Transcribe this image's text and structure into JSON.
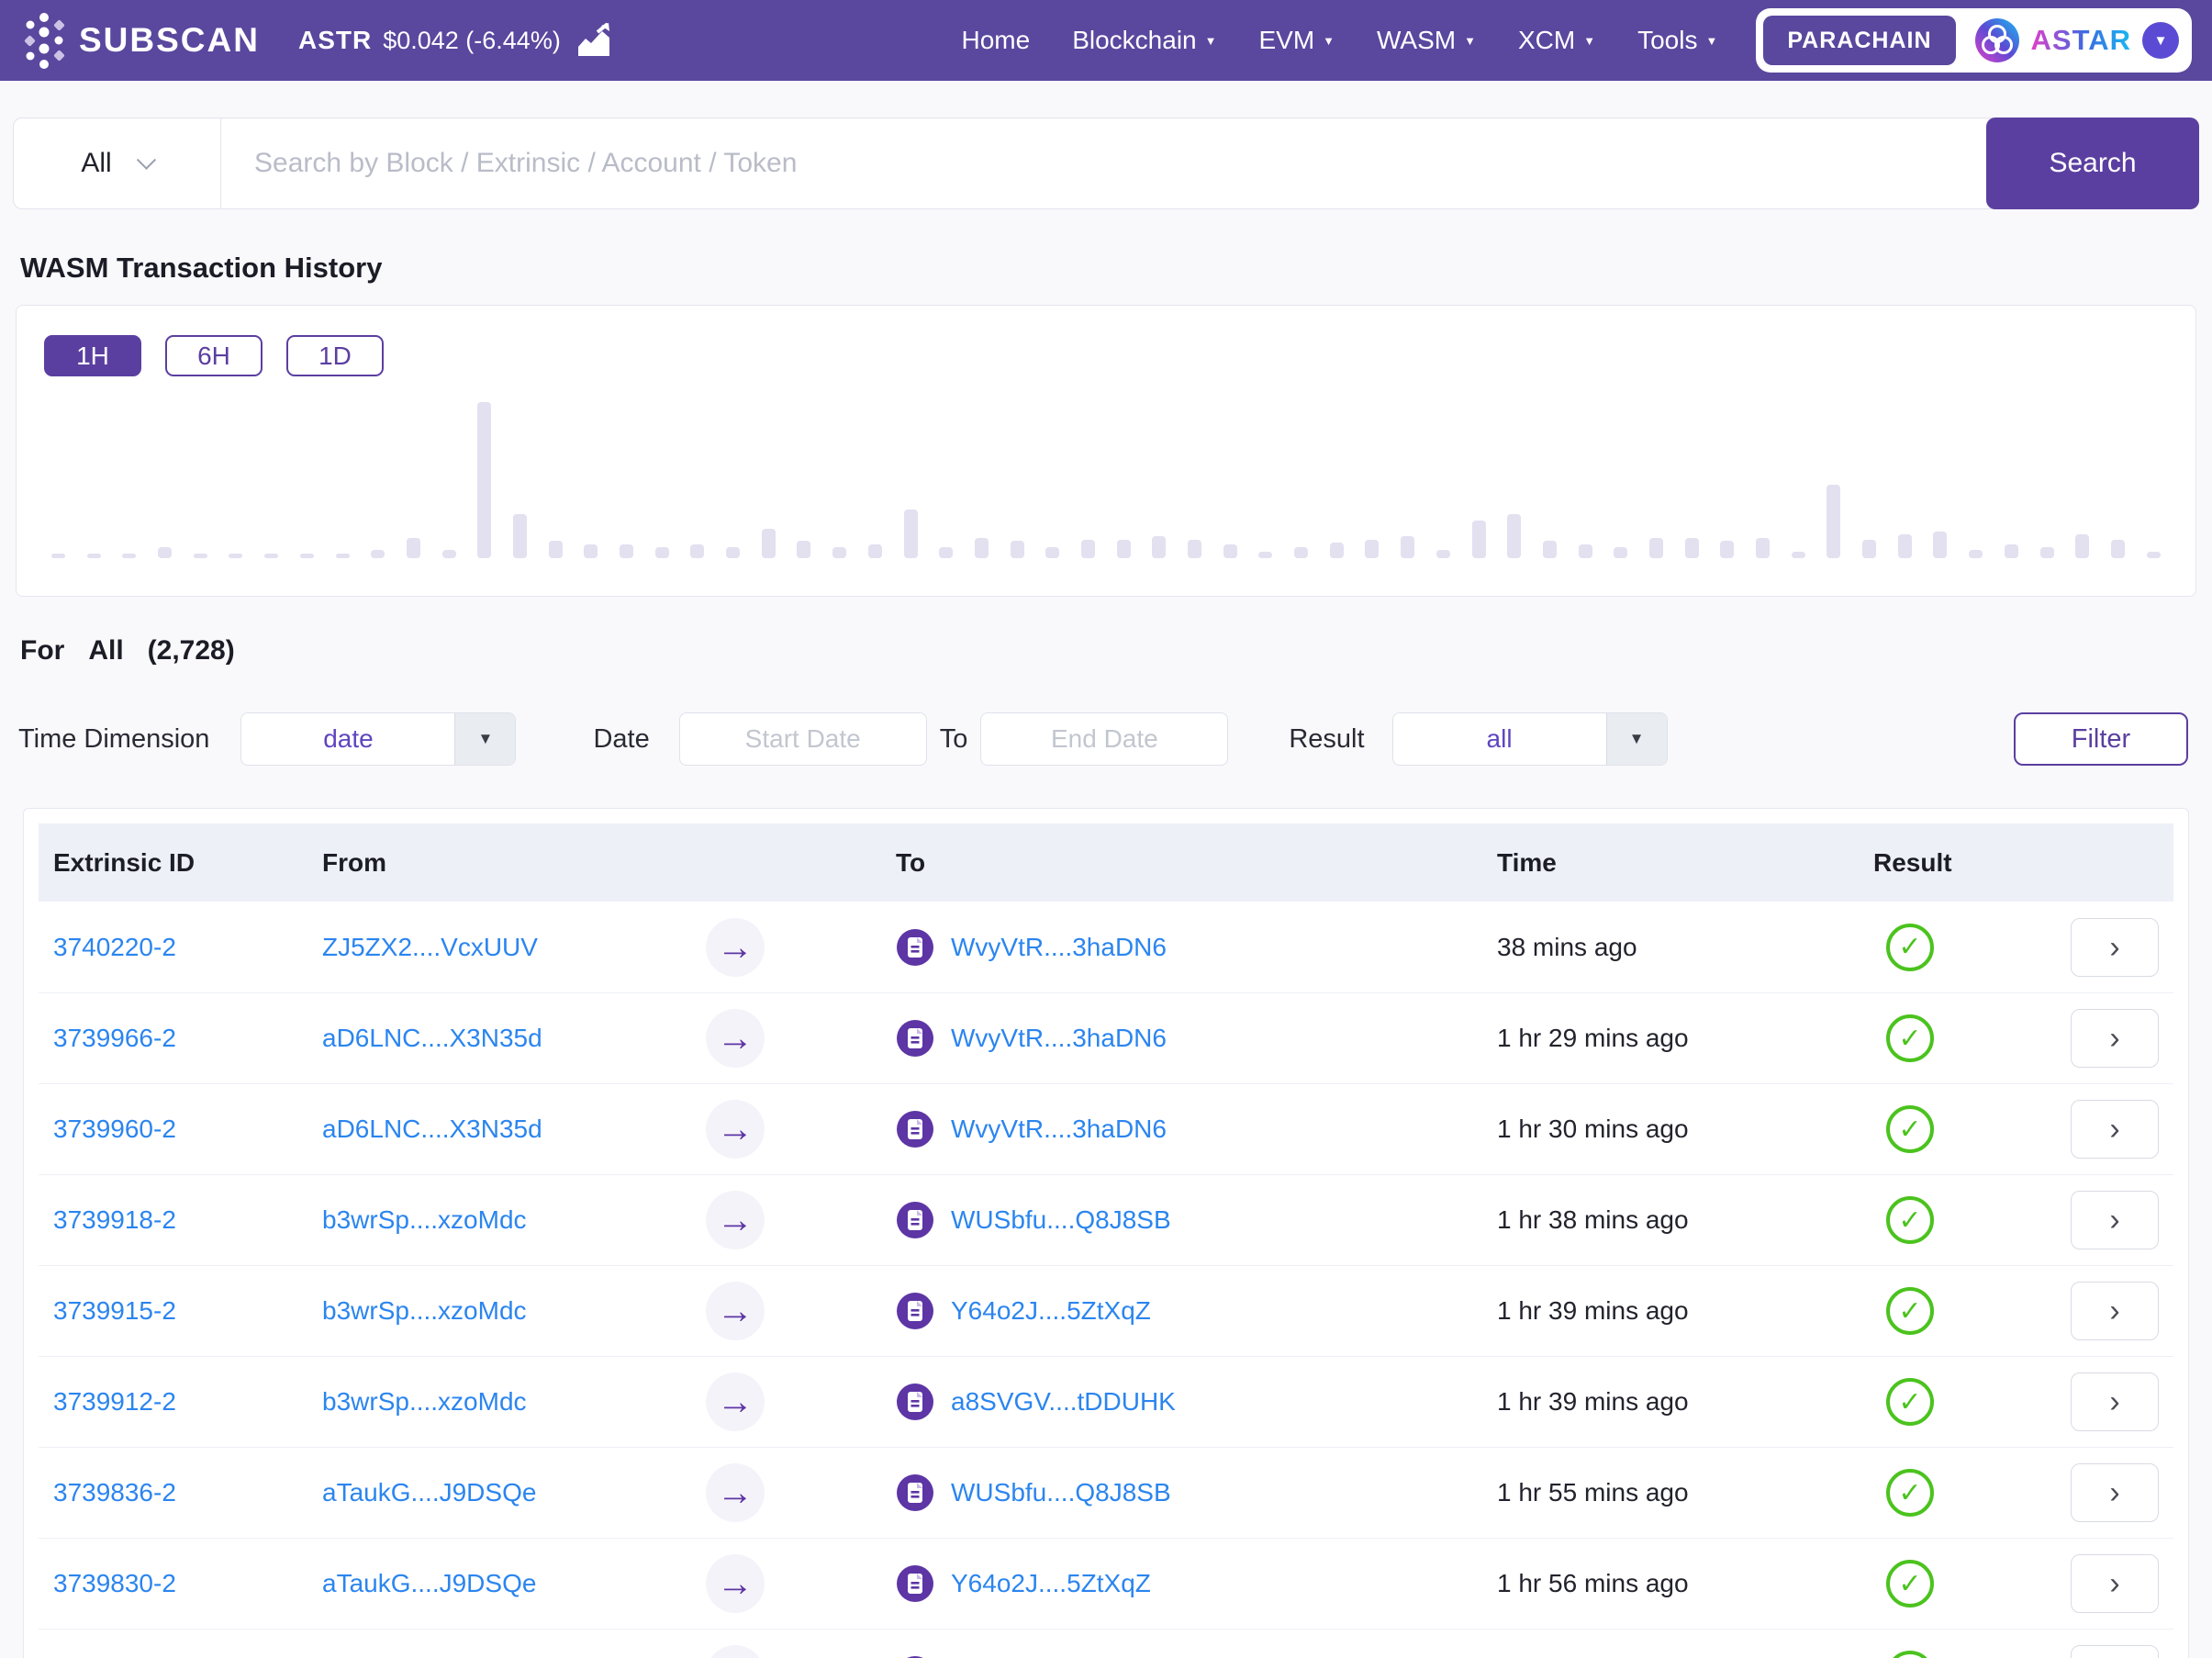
{
  "navbar": {
    "brand": "SUBSCAN",
    "token_symbol": "ASTR",
    "token_price": "$0.042 (-6.44%)",
    "links": [
      {
        "label": "Home",
        "dropdown": false
      },
      {
        "label": "Blockchain",
        "dropdown": true
      },
      {
        "label": "EVM",
        "dropdown": true
      },
      {
        "label": "WASM",
        "dropdown": true
      },
      {
        "label": "XCM",
        "dropdown": true
      },
      {
        "label": "Tools",
        "dropdown": true
      }
    ],
    "network_badge": "PARACHAIN",
    "network_name": "ASTAR",
    "colors": {
      "navbar_bg": "#5a479e",
      "accent_purple": "#5b3fa0",
      "astar_gradient": [
        "#e040c8",
        "#3a6be2",
        "#19b9f1"
      ]
    }
  },
  "search": {
    "scope": "All",
    "placeholder": "Search by Block / Extrinsic / Account / Token",
    "button": "Search"
  },
  "section": {
    "title": "WASM Transaction History",
    "ranges": [
      "1H",
      "6H",
      "1D"
    ],
    "active_range": "1H"
  },
  "chart_data": {
    "type": "bar",
    "title": "WASM Transaction History (1H interval)",
    "xlabel": "time (ticks not labeled)",
    "ylabel": "transaction count (axis not labeled)",
    "bar_color": "#e3e0f0",
    "grid": false,
    "legend": false,
    "values_note": "relative heights, 100 = tallest bar",
    "values": [
      1,
      1,
      1,
      7,
      1,
      1,
      1,
      1,
      1,
      5,
      13,
      5,
      100,
      28,
      11,
      9,
      9,
      7,
      9,
      7,
      19,
      11,
      7,
      9,
      31,
      7,
      13,
      11,
      7,
      12,
      12,
      14,
      12,
      9,
      4,
      7,
      10,
      12,
      14,
      5,
      24,
      28,
      11,
      9,
      7,
      13,
      13,
      11,
      13,
      4,
      47,
      12,
      15,
      17,
      5,
      9,
      7,
      15,
      12,
      4
    ]
  },
  "summary": {
    "for_label": "For",
    "scope": "All",
    "count": "(2,728)"
  },
  "filters": {
    "time_dimension_label": "Time Dimension",
    "time_dimension_value": "date",
    "date_label": "Date",
    "start_date_placeholder": "Start Date",
    "to_label": "To",
    "end_date_placeholder": "End Date",
    "result_label": "Result",
    "result_value": "all",
    "filter_button": "Filter"
  },
  "table": {
    "columns": [
      "Extrinsic ID",
      "From",
      "To",
      "Time",
      "Result"
    ],
    "link_color": "#2b85ef",
    "success_color": "#4bc31e",
    "rows": [
      {
        "id": "3740220-2",
        "from": "ZJ5ZX2....VcxUUV",
        "to": "WvyVtR....3haDN6",
        "time": "38 mins ago",
        "result": "success"
      },
      {
        "id": "3739966-2",
        "from": "aD6LNC....X3N35d",
        "to": "WvyVtR....3haDN6",
        "time": "1 hr 29 mins ago",
        "result": "success"
      },
      {
        "id": "3739960-2",
        "from": "aD6LNC....X3N35d",
        "to": "WvyVtR....3haDN6",
        "time": "1 hr 30 mins ago",
        "result": "success"
      },
      {
        "id": "3739918-2",
        "from": "b3wrSp....xzoMdc",
        "to": "WUSbfu....Q8J8SB",
        "time": "1 hr 38 mins ago",
        "result": "success"
      },
      {
        "id": "3739915-2",
        "from": "b3wrSp....xzoMdc",
        "to": "Y64o2J....5ZtXqZ",
        "time": "1 hr 39 mins ago",
        "result": "success"
      },
      {
        "id": "3739912-2",
        "from": "b3wrSp....xzoMdc",
        "to": "a8SVGV....tDDUHK",
        "time": "1 hr 39 mins ago",
        "result": "success"
      },
      {
        "id": "3739836-2",
        "from": "aTaukG....J9DSQe",
        "to": "WUSbfu....Q8J8SB",
        "time": "1 hr 55 mins ago",
        "result": "success"
      },
      {
        "id": "3739830-2",
        "from": "aTaukG....J9DSQe",
        "to": "Y64o2J....5ZtXqZ",
        "time": "1 hr 56 mins ago",
        "result": "success"
      },
      {
        "id": "",
        "from": "",
        "to": "",
        "time": "",
        "result": "success"
      }
    ]
  }
}
